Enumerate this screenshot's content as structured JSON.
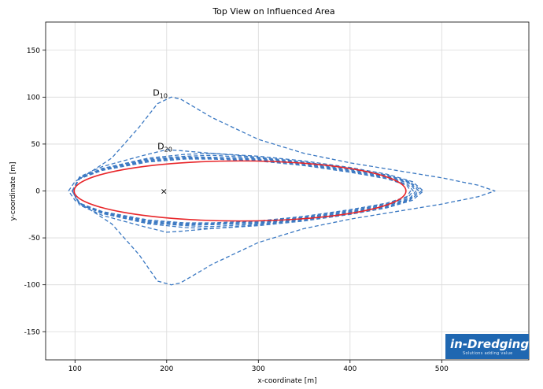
{
  "chart_data": {
    "type": "line",
    "title": "Top View on Influenced Area",
    "xlabel": "x-coordinate [m]",
    "ylabel": "y-coordinate [m]",
    "xlim": [
      68,
      595
    ],
    "ylim": [
      -180,
      180
    ],
    "xticks": [
      100,
      200,
      300,
      400,
      500
    ],
    "yticks": [
      -150,
      -100,
      -50,
      0,
      50,
      100,
      150
    ],
    "grid": true,
    "colors": {
      "contour": "#3a78c2",
      "hull": "#e8262a",
      "grid": "#d9d9d9",
      "axis": "#000000"
    },
    "series": [
      {
        "name": "D10",
        "style": "dashed",
        "x": [
          93,
          100,
          115,
          140,
          170,
          190,
          205,
          215,
          250,
          300,
          350,
          400,
          450,
          500,
          540,
          558,
          540,
          500,
          450,
          400,
          350,
          300,
          250,
          215,
          205,
          190,
          170,
          140,
          115,
          100,
          93
        ],
        "y": [
          0,
          10,
          19,
          35,
          68,
          93,
          100,
          98,
          78,
          55,
          40,
          30,
          22,
          14,
          6,
          0,
          -6,
          -14,
          -22,
          -30,
          -40,
          -55,
          -78,
          -98,
          -100,
          -96,
          -68,
          -35,
          -19,
          -10,
          0
        ]
      },
      {
        "style": "dashed",
        "x": [
          97,
          105,
          130,
          180,
          220,
          250,
          300,
          350,
          400,
          440,
          465,
          478,
          465,
          440,
          400,
          350,
          300,
          250,
          220,
          180,
          130,
          105,
          97
        ],
        "y": [
          0,
          14,
          24,
          35,
          39,
          40,
          36,
          31,
          24,
          17,
          10,
          0,
          -10,
          -17,
          -24,
          -31,
          -36,
          -40,
          -39,
          -35,
          -24,
          -14,
          0
        ]
      },
      {
        "style": "dashed",
        "x": [
          97,
          105,
          130,
          180,
          220,
          250,
          300,
          350,
          400,
          440,
          465,
          475,
          465,
          440,
          400,
          350,
          300,
          250,
          220,
          180,
          130,
          105,
          97
        ],
        "y": [
          0,
          14,
          24,
          34,
          37,
          38,
          35,
          30,
          23,
          16,
          9,
          0,
          -9,
          -16,
          -23,
          -30,
          -35,
          -38,
          -37,
          -34,
          -24,
          -14,
          0
        ]
      },
      {
        "style": "dashed",
        "x": [
          97,
          105,
          130,
          180,
          220,
          250,
          300,
          350,
          400,
          440,
          465,
          472,
          465,
          440,
          400,
          350,
          300,
          250,
          220,
          180,
          130,
          105,
          97
        ],
        "y": [
          0,
          13,
          23,
          33,
          36,
          36,
          34,
          29,
          22,
          15,
          8,
          0,
          -8,
          -15,
          -22,
          -29,
          -34,
          -36,
          -36,
          -33,
          -23,
          -13,
          0
        ]
      },
      {
        "style": "dashed",
        "x": [
          97,
          105,
          130,
          180,
          220,
          250,
          300,
          350,
          400,
          440,
          463,
          469,
          463,
          440,
          400,
          350,
          300,
          250,
          220,
          180,
          130,
          105,
          97
        ],
        "y": [
          0,
          13,
          23,
          32,
          35,
          35,
          33,
          28,
          21,
          14,
          7,
          0,
          -7,
          -14,
          -21,
          -28,
          -33,
          -35,
          -35,
          -32,
          -23,
          -13,
          0
        ]
      },
      {
        "style": "dashed",
        "x": [
          97,
          105,
          130,
          180,
          220,
          250,
          300,
          350,
          400,
          440,
          462,
          466,
          462,
          440,
          400,
          350,
          300,
          250,
          220,
          180,
          130,
          105,
          97
        ],
        "y": [
          0,
          13,
          22,
          31,
          34,
          34,
          32,
          27,
          20,
          13,
          6,
          0,
          -6,
          -13,
          -20,
          -27,
          -32,
          -34,
          -34,
          -31,
          -22,
          -13,
          0
        ]
      },
      {
        "name": "D20",
        "style": "dashed",
        "x": [
          97,
          105,
          130,
          175,
          200,
          215,
          250,
          300,
          350,
          400,
          440,
          468,
          480,
          468,
          440,
          400,
          350,
          300,
          250,
          215,
          200,
          175,
          130,
          105,
          97
        ],
        "y": [
          0,
          15,
          26,
          38,
          44,
          43,
          40,
          37,
          32,
          25,
          18,
          10,
          0,
          -10,
          -18,
          -25,
          -32,
          -37,
          -40,
          -43,
          -44,
          -38,
          -26,
          -15,
          0
        ]
      },
      {
        "name": "hull",
        "style": "solid",
        "center": [
          280,
          0
        ],
        "semi_axes": [
          181,
          32
        ]
      }
    ],
    "markers": [
      {
        "symbol": "×",
        "x": 197,
        "y": 0
      }
    ],
    "annotations": [
      {
        "base": "D",
        "sub": "10",
        "x": 193,
        "y": 100
      },
      {
        "base": "D",
        "sub": "20",
        "x": 198,
        "y": 43
      }
    ]
  },
  "logo": {
    "main": "in-Dredging",
    "tagline": "Solutions adding value"
  }
}
